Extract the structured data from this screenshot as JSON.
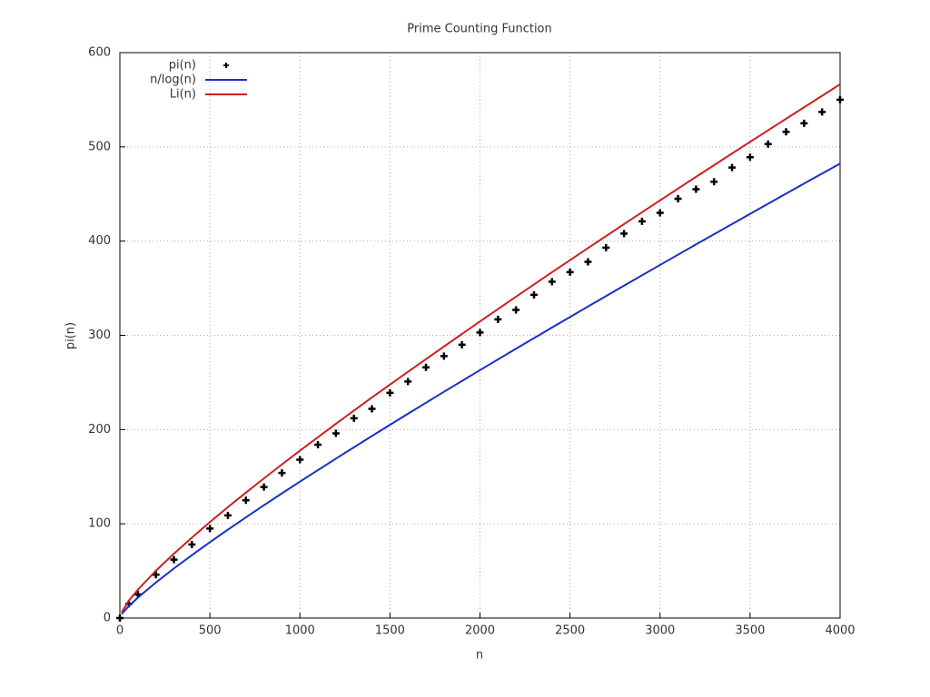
{
  "chart_data": {
    "type": "line",
    "title": "Prime Counting Function",
    "x_label": "n",
    "y_label": "pi(n)",
    "xlim": [
      0,
      4000
    ],
    "ylim": [
      0,
      600
    ],
    "xticks": [
      0,
      500,
      1000,
      1500,
      2000,
      2500,
      3000,
      3500,
      4000
    ],
    "yticks": [
      0,
      100,
      200,
      300,
      400,
      500,
      600
    ],
    "grid": true,
    "legend": "top-left",
    "series": [
      {
        "name": "pi(n)",
        "color": "#000000",
        "style": "points",
        "x": [
          0,
          50,
          100,
          200,
          300,
          400,
          500,
          600,
          700,
          800,
          900,
          1000,
          1100,
          1200,
          1300,
          1400,
          1500,
          1600,
          1700,
          1800,
          1900,
          2000,
          2100,
          2200,
          2300,
          2400,
          2500,
          2600,
          2700,
          2800,
          2900,
          3000,
          3100,
          3200,
          3300,
          3400,
          3500,
          3600,
          3700,
          3800,
          3900,
          4000
        ],
        "values": [
          0,
          15,
          25,
          46,
          62,
          78,
          95,
          109,
          125,
          139,
          154,
          168,
          184,
          196,
          212,
          222,
          239,
          251,
          266,
          278,
          290,
          303,
          317,
          327,
          343,
          357,
          367,
          378,
          393,
          408,
          421,
          430,
          445,
          455,
          463,
          478,
          489,
          503,
          516,
          525,
          537,
          550
        ]
      },
      {
        "name": "n/log(n)",
        "color": "#1a2fc4",
        "style": "line",
        "x": [
          10,
          50,
          100,
          200,
          300,
          400,
          500,
          600,
          700,
          800,
          900,
          1000,
          1200,
          1400,
          1600,
          1800,
          2000,
          2200,
          2400,
          2600,
          2800,
          3000,
          3200,
          3400,
          3600,
          3800,
          4000
        ],
        "values": [
          4.3,
          12.8,
          21.7,
          37.7,
          52.6,
          66.8,
          80.5,
          93.8,
          106.8,
          119.7,
          132.3,
          144.8,
          169.2,
          193.2,
          216.8,
          240.1,
          263.1,
          285.8,
          308.3,
          330.6,
          352.7,
          374.7,
          396.5,
          418.1,
          439.7,
          461.1,
          482.3
        ]
      },
      {
        "name": "Li(n)",
        "color": "#cc1f1f",
        "style": "line",
        "x": [
          10,
          50,
          100,
          200,
          300,
          400,
          500,
          600,
          700,
          800,
          900,
          1000,
          1200,
          1400,
          1600,
          1800,
          2000,
          2200,
          2400,
          2600,
          2800,
          3000,
          3200,
          3400,
          3600,
          3800,
          4000
        ],
        "values": [
          6.2,
          18.6,
          30.1,
          50.2,
          68.3,
          85.4,
          101.8,
          117.7,
          133.1,
          148.2,
          163.0,
          177.6,
          206.2,
          234.1,
          261.3,
          288.1,
          314.8,
          341.0,
          367.0,
          392.6,
          418.0,
          443.2,
          468.2,
          493.0,
          517.6,
          542.0,
          566.4
        ]
      }
    ]
  }
}
